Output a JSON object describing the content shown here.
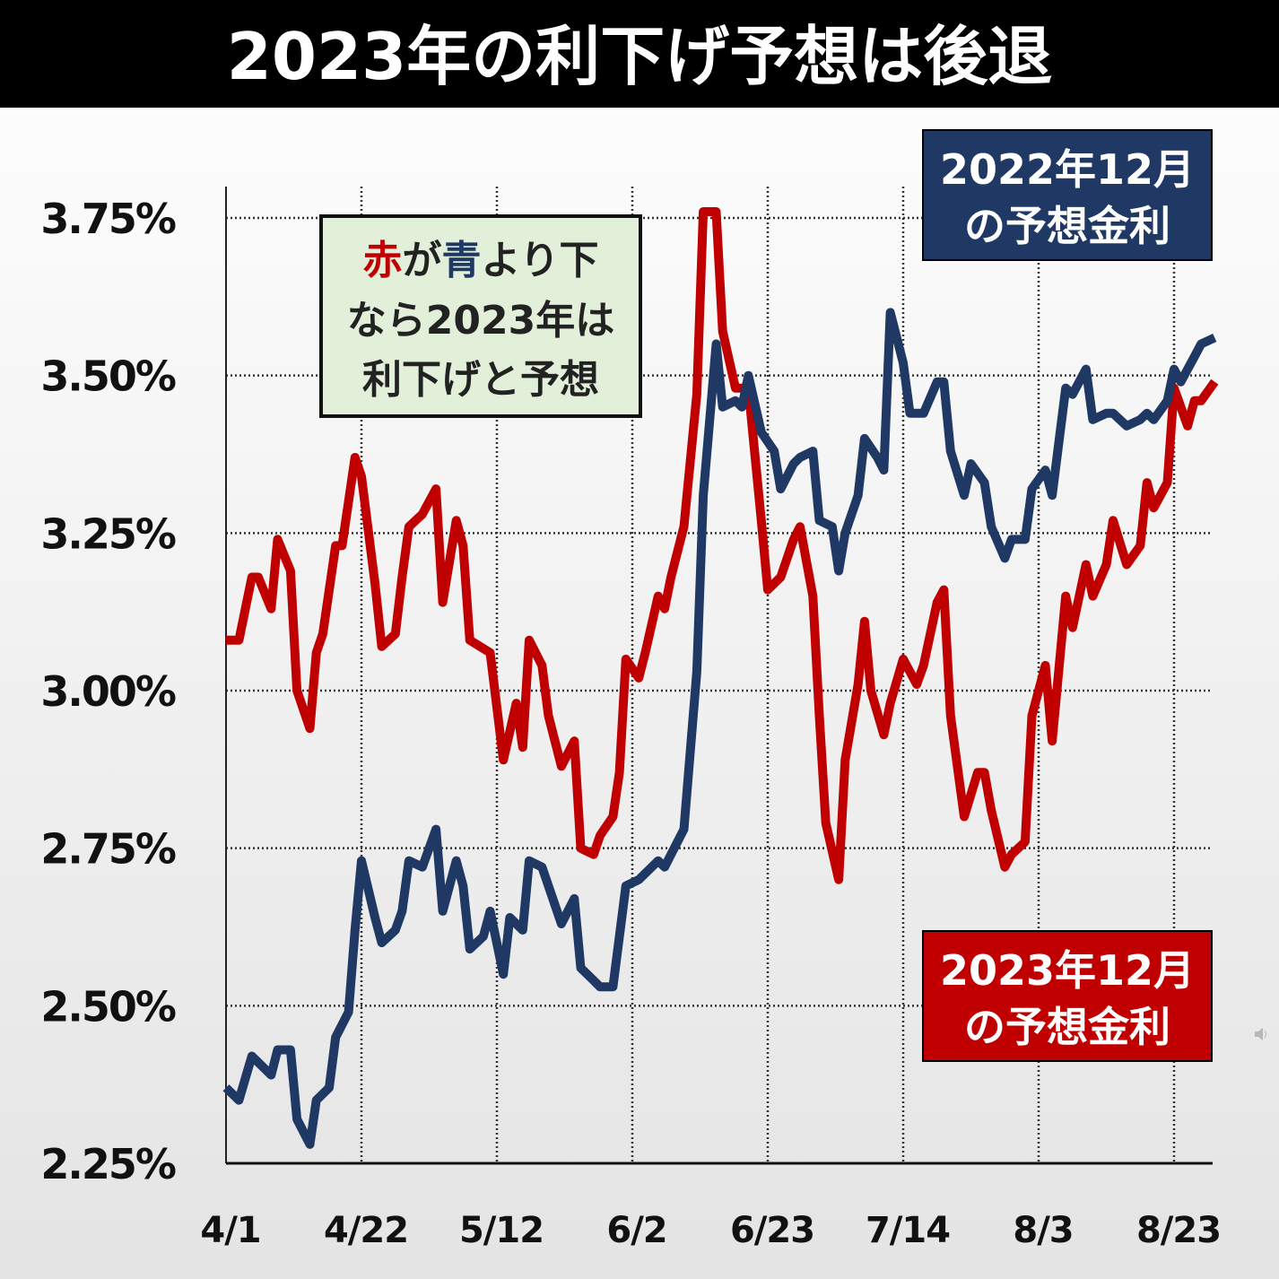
{
  "chart_data": {
    "type": "line",
    "title": "2023年の利下げ予想は後退",
    "xlabel": "",
    "ylabel": "",
    "x_ticks": [
      "4/1",
      "4/22",
      "5/12",
      "6/2",
      "6/23",
      "7/14",
      "8/3",
      "8/23"
    ],
    "y_ticks": [
      "2.25%",
      "2.50%",
      "2.75%",
      "3.00%",
      "3.25%",
      "3.50%",
      "3.75%"
    ],
    "ylim": [
      2.25,
      3.75
    ],
    "grid": true,
    "series": [
      {
        "name": "2022年12月の予想金利",
        "name_lines": [
          "2022年12月",
          "の予想金利"
        ],
        "color": "#1f3864",
        "points": [
          [
            "4/1",
            2.37
          ],
          [
            "4/3",
            2.35
          ],
          [
            "4/5",
            2.42
          ],
          [
            "4/6",
            2.41
          ],
          [
            "4/8",
            2.39
          ],
          [
            "4/9",
            2.43
          ],
          [
            "4/11",
            2.43
          ],
          [
            "4/12",
            2.32
          ],
          [
            "4/14",
            2.28
          ],
          [
            "4/15",
            2.35
          ],
          [
            "4/17",
            2.37
          ],
          [
            "4/18",
            2.45
          ],
          [
            "4/20",
            2.49
          ],
          [
            "4/21",
            2.62
          ],
          [
            "4/22",
            2.73
          ],
          [
            "4/24",
            2.64
          ],
          [
            "4/25",
            2.6
          ],
          [
            "4/27",
            2.62
          ],
          [
            "4/28",
            2.65
          ],
          [
            "4/29",
            2.73
          ],
          [
            "5/1",
            2.72
          ],
          [
            "5/3",
            2.78
          ],
          [
            "5/4",
            2.65
          ],
          [
            "5/6",
            2.73
          ],
          [
            "5/7",
            2.69
          ],
          [
            "5/8",
            2.59
          ],
          [
            "5/10",
            2.61
          ],
          [
            "5/11",
            2.65
          ],
          [
            "5/13",
            2.55
          ],
          [
            "5/14",
            2.64
          ],
          [
            "5/16",
            2.62
          ],
          [
            "5/17",
            2.73
          ],
          [
            "5/19",
            2.72
          ],
          [
            "5/21",
            2.66
          ],
          [
            "5/22",
            2.63
          ],
          [
            "5/24",
            2.67
          ],
          [
            "5/25",
            2.56
          ],
          [
            "5/27",
            2.54
          ],
          [
            "5/28",
            2.53
          ],
          [
            "5/30",
            2.53
          ],
          [
            "5/31",
            2.61
          ],
          [
            "6/1",
            2.69
          ],
          [
            "6/3",
            2.7
          ],
          [
            "6/4",
            2.71
          ],
          [
            "6/6",
            2.73
          ],
          [
            "6/7",
            2.72
          ],
          [
            "6/8",
            2.74
          ],
          [
            "6/10",
            2.78
          ],
          [
            "6/12",
            3.03
          ],
          [
            "6/13",
            3.31
          ],
          [
            "6/15",
            3.55
          ],
          [
            "6/16",
            3.45
          ],
          [
            "6/18",
            3.46
          ],
          [
            "6/19",
            3.45
          ],
          [
            "6/20",
            3.5
          ],
          [
            "6/22",
            3.41
          ],
          [
            "6/24",
            3.38
          ],
          [
            "6/25",
            3.32
          ],
          [
            "6/27",
            3.36
          ],
          [
            "6/28",
            3.37
          ],
          [
            "6/30",
            3.38
          ],
          [
            "7/1",
            3.27
          ],
          [
            "7/3",
            3.26
          ],
          [
            "7/4",
            3.19
          ],
          [
            "7/5",
            3.25
          ],
          [
            "7/7",
            3.31
          ],
          [
            "7/8",
            3.4
          ],
          [
            "7/10",
            3.37
          ],
          [
            "7/11",
            3.35
          ],
          [
            "7/12",
            3.6
          ],
          [
            "7/14",
            3.52
          ],
          [
            "7/15",
            3.44
          ],
          [
            "7/17",
            3.44
          ],
          [
            "7/19",
            3.49
          ],
          [
            "7/20",
            3.49
          ],
          [
            "7/21",
            3.38
          ],
          [
            "7/23",
            3.31
          ],
          [
            "7/24",
            3.36
          ],
          [
            "7/26",
            3.33
          ],
          [
            "7/27",
            3.26
          ],
          [
            "7/29",
            3.21
          ],
          [
            "7/30",
            3.24
          ],
          [
            "8/1",
            3.24
          ],
          [
            "8/2",
            3.32
          ],
          [
            "8/4",
            3.35
          ],
          [
            "8/5",
            3.31
          ],
          [
            "8/7",
            3.48
          ],
          [
            "8/8",
            3.47
          ],
          [
            "8/10",
            3.51
          ],
          [
            "8/11",
            3.43
          ],
          [
            "8/13",
            3.44
          ],
          [
            "8/14",
            3.44
          ],
          [
            "8/16",
            3.42
          ],
          [
            "8/18",
            3.43
          ],
          [
            "8/19",
            3.44
          ],
          [
            "8/20",
            3.43
          ],
          [
            "8/22",
            3.46
          ],
          [
            "8/23",
            3.51
          ],
          [
            "8/24",
            3.49
          ],
          [
            "8/26",
            3.53
          ],
          [
            "8/27",
            3.55
          ],
          [
            "8/29",
            3.56
          ]
        ]
      },
      {
        "name": "2023年12月の予想金利",
        "name_lines": [
          "2023年12月",
          "の予想金利"
        ],
        "color": "#c00000",
        "points": [
          [
            "4/1",
            3.08
          ],
          [
            "4/3",
            3.08
          ],
          [
            "4/5",
            3.18
          ],
          [
            "4/6",
            3.18
          ],
          [
            "4/8",
            3.13
          ],
          [
            "4/9",
            3.24
          ],
          [
            "4/11",
            3.19
          ],
          [
            "4/12",
            3.0
          ],
          [
            "4/14",
            2.94
          ],
          [
            "4/15",
            3.06
          ],
          [
            "4/16",
            3.09
          ],
          [
            "4/18",
            3.23
          ],
          [
            "4/19",
            3.23
          ],
          [
            "4/21",
            3.37
          ],
          [
            "4/22",
            3.34
          ],
          [
            "4/24",
            3.17
          ],
          [
            "4/25",
            3.07
          ],
          [
            "4/27",
            3.09
          ],
          [
            "4/28",
            3.18
          ],
          [
            "4/29",
            3.26
          ],
          [
            "5/1",
            3.28
          ],
          [
            "5/3",
            3.32
          ],
          [
            "5/4",
            3.14
          ],
          [
            "5/6",
            3.27
          ],
          [
            "5/7",
            3.23
          ],
          [
            "5/8",
            3.08
          ],
          [
            "5/11",
            3.06
          ],
          [
            "5/13",
            2.89
          ],
          [
            "5/15",
            2.98
          ],
          [
            "5/16",
            2.91
          ],
          [
            "5/17",
            3.08
          ],
          [
            "5/19",
            3.04
          ],
          [
            "5/20",
            2.96
          ],
          [
            "5/22",
            2.88
          ],
          [
            "5/24",
            2.92
          ],
          [
            "5/25",
            2.75
          ],
          [
            "5/27",
            2.74
          ],
          [
            "5/28",
            2.77
          ],
          [
            "5/30",
            2.8
          ],
          [
            "5/31",
            2.87
          ],
          [
            "6/1",
            3.05
          ],
          [
            "6/3",
            3.02
          ],
          [
            "6/4",
            3.06
          ],
          [
            "6/6",
            3.15
          ],
          [
            "6/7",
            3.13
          ],
          [
            "6/8",
            3.18
          ],
          [
            "6/10",
            3.26
          ],
          [
            "6/12",
            3.47
          ],
          [
            "6/13",
            3.76
          ],
          [
            "6/15",
            3.76
          ],
          [
            "6/16",
            3.57
          ],
          [
            "6/18",
            3.48
          ],
          [
            "6/20",
            3.48
          ],
          [
            "6/22",
            3.27
          ],
          [
            "6/23",
            3.16
          ],
          [
            "6/25",
            3.18
          ],
          [
            "6/27",
            3.24
          ],
          [
            "6/28",
            3.26
          ],
          [
            "6/30",
            3.15
          ],
          [
            "7/1",
            2.96
          ],
          [
            "7/2",
            2.79
          ],
          [
            "7/4",
            2.7
          ],
          [
            "7/5",
            2.89
          ],
          [
            "7/7",
            3.01
          ],
          [
            "7/8",
            3.11
          ],
          [
            "7/9",
            3.0
          ],
          [
            "7/11",
            2.93
          ],
          [
            "7/12",
            2.98
          ],
          [
            "7/14",
            3.05
          ],
          [
            "7/16",
            3.01
          ],
          [
            "7/17",
            3.04
          ],
          [
            "7/19",
            3.14
          ],
          [
            "7/20",
            3.16
          ],
          [
            "7/21",
            2.96
          ],
          [
            "7/23",
            2.8
          ],
          [
            "7/25",
            2.87
          ],
          [
            "7/26",
            2.87
          ],
          [
            "7/27",
            2.81
          ],
          [
            "7/29",
            2.72
          ],
          [
            "7/30",
            2.74
          ],
          [
            "8/1",
            2.76
          ],
          [
            "8/2",
            2.96
          ],
          [
            "8/4",
            3.04
          ],
          [
            "8/5",
            2.92
          ],
          [
            "8/7",
            3.15
          ],
          [
            "8/8",
            3.1
          ],
          [
            "8/10",
            3.2
          ],
          [
            "8/11",
            3.15
          ],
          [
            "8/13",
            3.2
          ],
          [
            "8/14",
            3.27
          ],
          [
            "8/16",
            3.2
          ],
          [
            "8/18",
            3.23
          ],
          [
            "8/19",
            3.33
          ],
          [
            "8/20",
            3.29
          ],
          [
            "8/22",
            3.33
          ],
          [
            "8/23",
            3.48
          ],
          [
            "8/25",
            3.42
          ],
          [
            "8/26",
            3.46
          ],
          [
            "8/27",
            3.46
          ],
          [
            "8/29",
            3.49
          ]
        ]
      }
    ],
    "annotation": {
      "line1": {
        "red": "赤",
        "mid": "が",
        "blue": "青",
        "rest": "より下"
      },
      "line2": "なら2023年は",
      "line3": "利下げと予想"
    },
    "legend_placement": "top-right / bottom-right boxes"
  },
  "colors": {
    "title_bar": "#000000",
    "annotation_bg": "#e2efd9",
    "red": "#c00000",
    "blue": "#1f3864"
  },
  "icons": {
    "speaker": "speaker-icon"
  }
}
